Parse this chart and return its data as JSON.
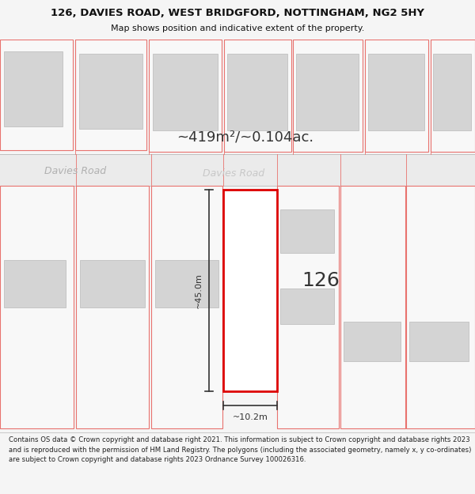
{
  "title": "126, DAVIES ROAD, WEST BRIDGFORD, NOTTINGHAM, NG2 5HY",
  "subtitle": "Map shows position and indicative extent of the property.",
  "area_text": "~419m²/~0.104ac.",
  "road_label_1": "Davies Road",
  "road_label_2": "Davies Road",
  "number_label": "126",
  "dim_height": "~45.0m",
  "dim_width": "~10.2m",
  "footer_text": "Contains OS data © Crown copyright and database right 2021. This information is subject to Crown copyright and database rights 2023 and is reproduced with the permission of HM Land Registry. The polygons (including the associated geometry, namely x, y co-ordinates) are subject to Crown copyright and database rights 2023 Ordnance Survey 100026316.",
  "bg_color": "#f5f5f5",
  "map_bg": "#ffffff",
  "road_bg": "#ebebeb",
  "plot_red": "#e8726e",
  "building_gray": "#d4d4d4",
  "building_edge": "#c0c0c0",
  "plot_face": "#f9f9f9",
  "title_color": "#111111",
  "road_text_color": "#aaaaaa",
  "dim_color": "#333333",
  "footer_color": "#222222",
  "sep_color": "#cccccc"
}
